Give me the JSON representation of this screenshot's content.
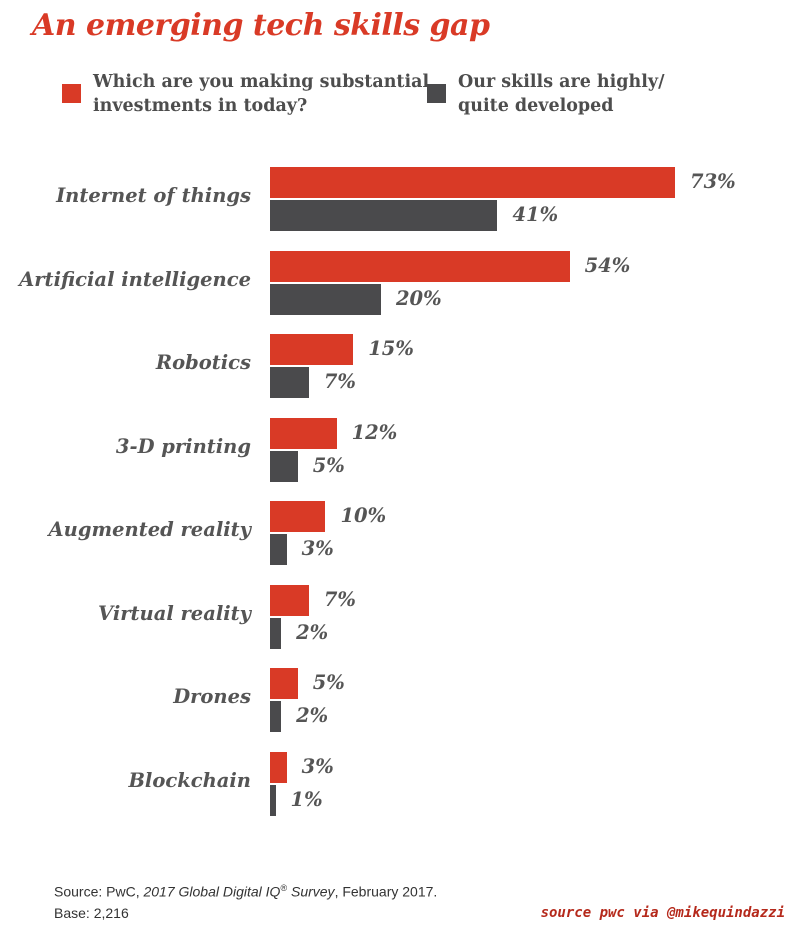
{
  "chart_data": {
    "type": "bar",
    "orientation": "horizontal",
    "title": "An emerging tech skills gap",
    "categories": [
      "Internet of things",
      "Artificial intelligence",
      "Robotics",
      "3-D printing",
      "Augmented reality",
      "Virtual reality",
      "Drones",
      "Blockchain"
    ],
    "series": [
      {
        "name": "Which are you making substantial investments in today?",
        "name_lines": [
          "Which are you making substantial",
          "investments in today?"
        ],
        "color": "#d93a26",
        "values": [
          73,
          54,
          15,
          12,
          10,
          7,
          5,
          3
        ],
        "labels": [
          "73%",
          "54%",
          "15%",
          "12%",
          "10%",
          "7%",
          "5%",
          "3%"
        ]
      },
      {
        "name": "Our skills are highly/ quite developed",
        "name_lines": [
          "Our skills are highly/",
          "quite developed"
        ],
        "color": "#4a4a4c",
        "values": [
          41,
          20,
          7,
          5,
          3,
          2,
          2,
          1
        ],
        "labels": [
          "41%",
          "20%",
          "7%",
          "5%",
          "3%",
          "2%",
          "2%",
          "1%"
        ]
      }
    ],
    "unit": "%",
    "xlim": [
      0,
      73
    ],
    "legend_position": "top",
    "grid": false
  },
  "footer": {
    "source_prefix": "Source: PwC, ",
    "source_title": "2017 Global Digital IQ",
    "source_mark": "®",
    "source_title_end": " Survey",
    "source_suffix": ", February 2017.",
    "base": "Base: 2,216",
    "credit": "source pwc via @mikequindazzi"
  }
}
